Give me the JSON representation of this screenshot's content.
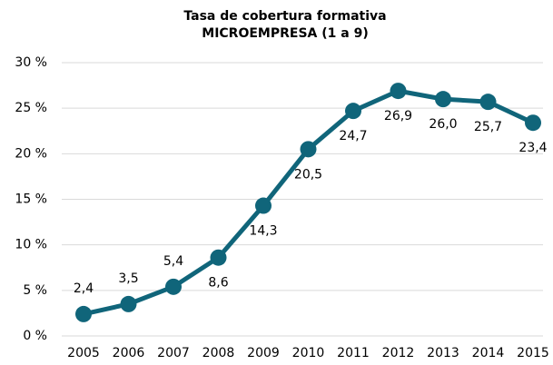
{
  "chart_data": {
    "type": "line",
    "title": "Tasa de cobertura formativa",
    "subtitle": "MICROEMPRESA (1 a 9)",
    "categories": [
      "2005",
      "2006",
      "2007",
      "2008",
      "2009",
      "2010",
      "2011",
      "2012",
      "2013",
      "2014",
      "2015"
    ],
    "series": [
      {
        "color": "#10657a",
        "values": [
          2.4,
          3.5,
          5.4,
          8.6,
          14.3,
          20.5,
          24.7,
          26.9,
          26.0,
          25.7,
          23.4
        ],
        "value_labels": [
          "2,4",
          "3,5",
          "5,4",
          "8,6",
          "14,3",
          "20,5",
          "24,7",
          "26,9",
          "26,0",
          "25,7",
          "23,4"
        ]
      }
    ],
    "ylim": [
      0,
      30
    ],
    "yticks": [
      {
        "value": 0,
        "label": "0 %"
      },
      {
        "value": 5,
        "label": "5 %"
      },
      {
        "value": 10,
        "label": "10 %"
      },
      {
        "value": 15,
        "label": "15 %"
      },
      {
        "value": 20,
        "label": "20 %"
      },
      {
        "value": 25,
        "label": "25 %"
      },
      {
        "value": 30,
        "label": "30 %"
      }
    ],
    "grid": true
  }
}
